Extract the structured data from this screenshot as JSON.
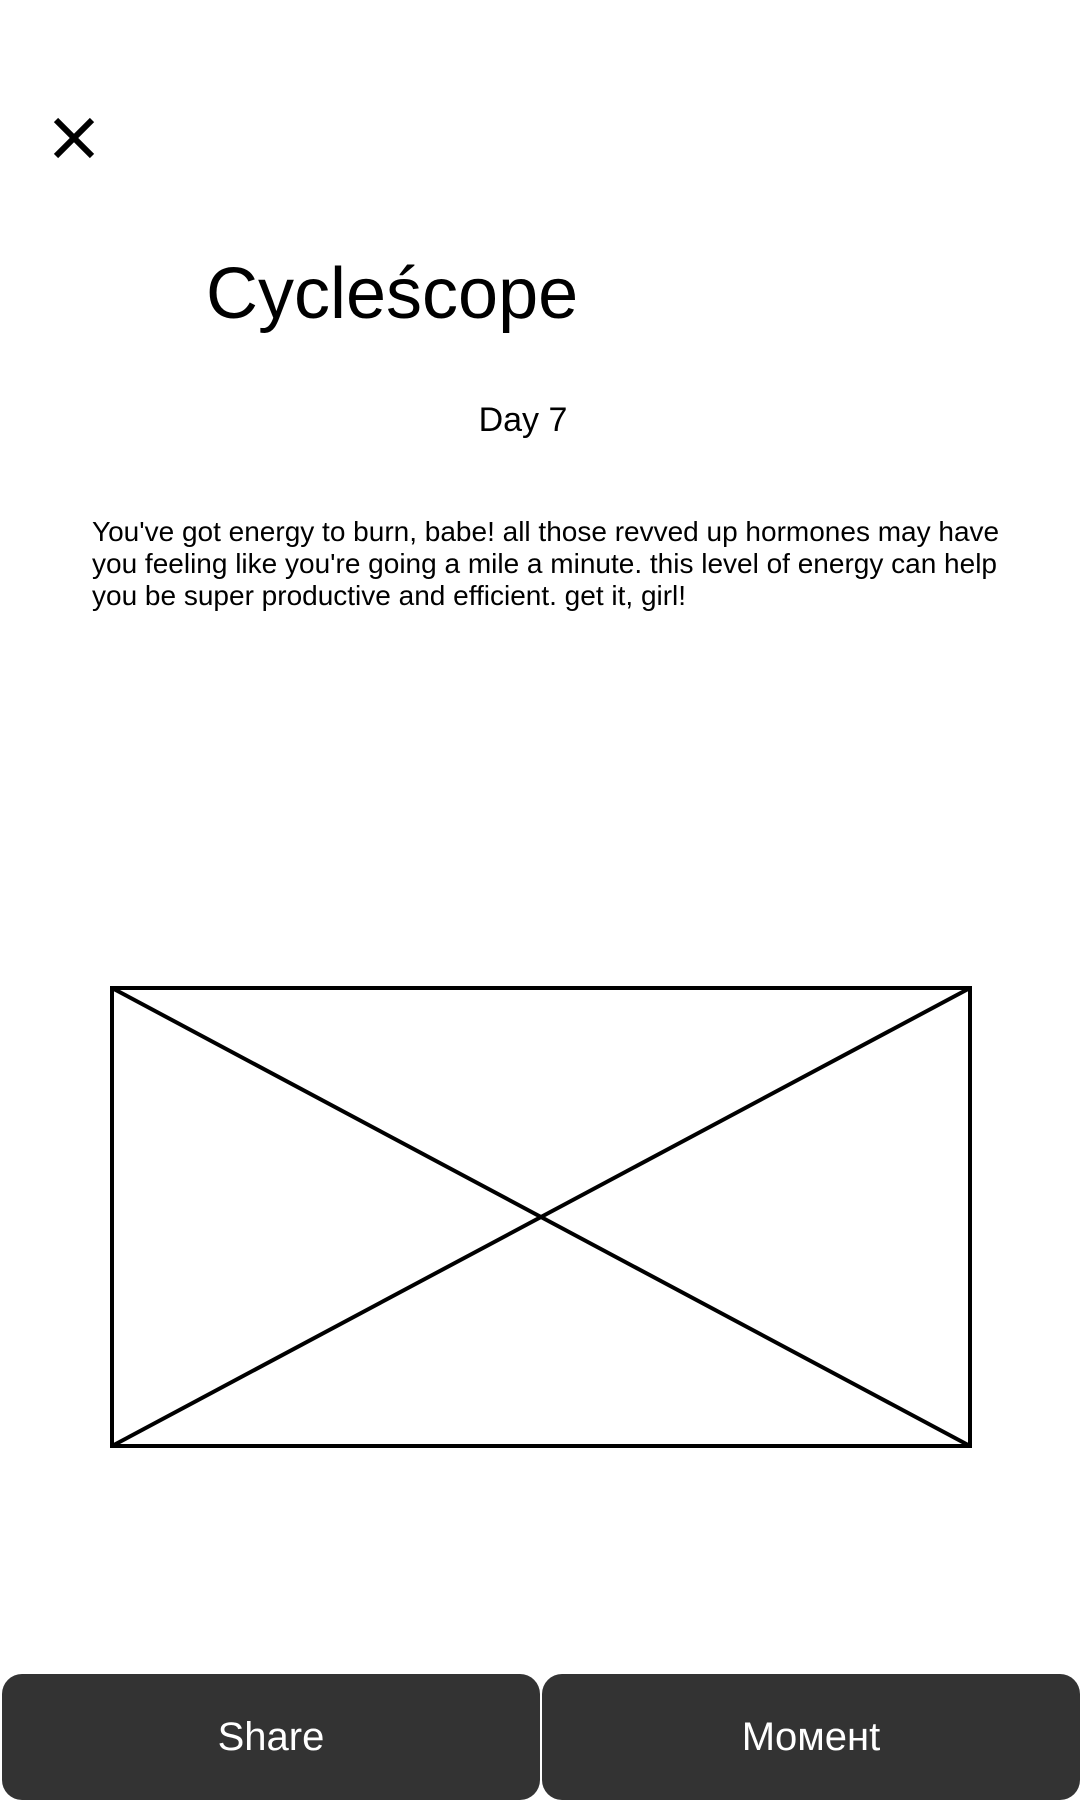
{
  "header": {
    "close_icon": "close-icon"
  },
  "main": {
    "title": "Cycleścope",
    "day_label": "Day 7",
    "message": "You've got energy to burn, babe! all those revved up hormones may have you feeling like you're going a mile a minute. this level of energy can help you be super productive and efficient. get it, girl!",
    "image_icon": "image-placeholder-icon"
  },
  "footer": {
    "share_label": "Share",
    "moment_label": "Moмeнt"
  },
  "colors": {
    "button_background": "#333333",
    "button_text": "#ffffff",
    "text": "#000000",
    "background": "#ffffff"
  }
}
